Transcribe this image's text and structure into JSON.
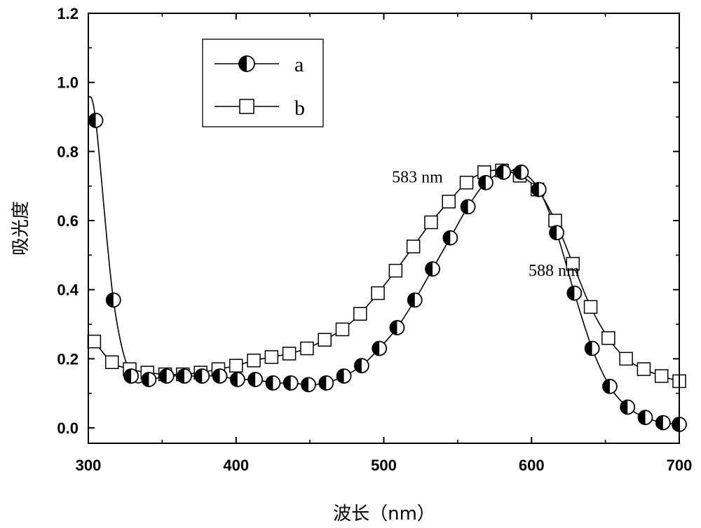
{
  "chart_data": {
    "type": "line",
    "title": "",
    "xlabel": "波长（nm）",
    "ylabel": "吸光度",
    "xlim": [
      300,
      700
    ],
    "ylim": [
      -0.05,
      1.2
    ],
    "xticks": [
      300,
      400,
      500,
      600,
      700
    ],
    "yticks": [
      0.0,
      0.2,
      0.4,
      0.6,
      0.8,
      1.0,
      1.2
    ],
    "xtick_labels": [
      "300",
      "400",
      "500",
      "600",
      "700"
    ],
    "ytick_labels": [
      "0.0",
      "0.2",
      "0.4",
      "0.6",
      "0.8",
      "1.0",
      "1.2"
    ],
    "legend_position": "top-left",
    "series": [
      {
        "name": "a",
        "marker": "half-filled-circle",
        "x": [
          305,
          317,
          329,
          341,
          353,
          365,
          377,
          389,
          401,
          413,
          425,
          437,
          449,
          461,
          473,
          485,
          497,
          509,
          521,
          533,
          545,
          557,
          569,
          581,
          593,
          605,
          617,
          629,
          641,
          653,
          665,
          677,
          689,
          700
        ],
        "y": [
          0.89,
          0.37,
          0.15,
          0.14,
          0.15,
          0.15,
          0.15,
          0.15,
          0.14,
          0.14,
          0.13,
          0.13,
          0.125,
          0.13,
          0.15,
          0.18,
          0.23,
          0.29,
          0.37,
          0.46,
          0.55,
          0.64,
          0.71,
          0.74,
          0.74,
          0.69,
          0.565,
          0.39,
          0.23,
          0.12,
          0.06,
          0.03,
          0.015,
          0.01
        ]
      },
      {
        "name": "b",
        "marker": "open-square",
        "x": [
          304,
          316,
          328,
          340,
          352,
          364,
          376,
          388,
          400,
          412,
          424,
          436,
          448,
          460,
          472,
          484,
          496,
          508,
          520,
          532,
          544,
          556,
          568,
          580,
          592,
          604,
          616,
          628,
          640,
          652,
          664,
          676,
          688,
          700
        ],
        "y": [
          0.25,
          0.19,
          0.17,
          0.16,
          0.155,
          0.155,
          0.16,
          0.17,
          0.18,
          0.195,
          0.205,
          0.215,
          0.23,
          0.255,
          0.285,
          0.33,
          0.39,
          0.455,
          0.525,
          0.595,
          0.655,
          0.71,
          0.74,
          0.745,
          0.73,
          0.69,
          0.6,
          0.475,
          0.35,
          0.26,
          0.2,
          0.17,
          0.15,
          0.135
        ]
      }
    ],
    "annotations": [
      {
        "text": "583 nm",
        "x": 540,
        "y": 0.71
      },
      {
        "text": "588 nm",
        "x": 598,
        "y": 0.44
      }
    ]
  }
}
